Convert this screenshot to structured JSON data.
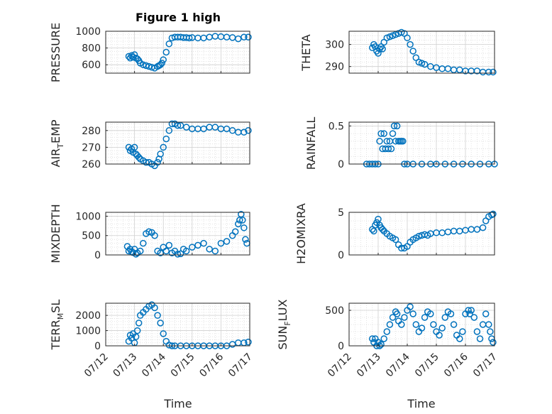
{
  "figure": {
    "title": "Figure 1 high"
  },
  "chart_data": [
    {
      "type": "scatter",
      "name": "PRESSURE",
      "ylabel": "PRESSURE",
      "xlim": [
        0,
        5
      ],
      "ylim": [
        500,
        1000
      ],
      "yticks": [
        600,
        800,
        1000
      ],
      "grid": true,
      "x": [
        0.8,
        0.85,
        0.9,
        0.95,
        1.0,
        1.05,
        1.1,
        1.15,
        1.2,
        1.3,
        1.4,
        1.5,
        1.6,
        1.7,
        1.8,
        1.85,
        1.9,
        1.95,
        2.0,
        2.1,
        2.2,
        2.3,
        2.4,
        2.5,
        2.6,
        2.7,
        2.8,
        2.9,
        3.0,
        3.2,
        3.4,
        3.6,
        3.8,
        4.0,
        4.2,
        4.4,
        4.6,
        4.8,
        4.95
      ],
      "values": [
        700,
        680,
        710,
        690,
        720,
        680,
        670,
        650,
        620,
        600,
        590,
        580,
        570,
        560,
        580,
        590,
        600,
        620,
        660,
        750,
        850,
        920,
        930,
        930,
        930,
        925,
        925,
        920,
        925,
        920,
        920,
        930,
        940,
        935,
        930,
        925,
        910,
        930,
        930
      ]
    },
    {
      "type": "scatter",
      "name": "THETA",
      "ylabel": "THETA",
      "xlim": [
        0,
        5
      ],
      "ylim": [
        287,
        306
      ],
      "yticks": [
        290,
        300
      ],
      "grid": true,
      "x": [
        0.8,
        0.85,
        0.9,
        0.95,
        1.0,
        1.05,
        1.1,
        1.15,
        1.2,
        1.3,
        1.4,
        1.5,
        1.6,
        1.7,
        1.8,
        1.9,
        2.0,
        2.1,
        2.2,
        2.3,
        2.4,
        2.5,
        2.6,
        2.8,
        3.0,
        3.2,
        3.4,
        3.6,
        3.8,
        4.0,
        4.2,
        4.4,
        4.6,
        4.8,
        4.95
      ],
      "values": [
        298.5,
        300,
        299,
        297,
        296,
        298,
        299,
        298,
        301,
        303,
        303.5,
        304,
        304.5,
        305,
        305.5,
        305,
        303,
        300,
        297,
        294,
        292,
        291.5,
        291,
        290,
        289.5,
        289,
        289,
        288.5,
        288.5,
        288,
        288,
        288,
        287.5,
        287.5,
        287.5
      ]
    },
    {
      "type": "scatter",
      "name": "AIR_TEMP",
      "ylabel": "AIR_TEMP",
      "xlim": [
        0,
        5
      ],
      "ylim": [
        260,
        285
      ],
      "yticks": [
        260,
        270,
        280
      ],
      "grid": true,
      "x": [
        0.8,
        0.85,
        0.9,
        0.95,
        1.0,
        1.05,
        1.1,
        1.15,
        1.2,
        1.3,
        1.4,
        1.5,
        1.6,
        1.7,
        1.8,
        1.85,
        1.9,
        2.0,
        2.1,
        2.2,
        2.3,
        2.4,
        2.5,
        2.6,
        2.8,
        3.0,
        3.2,
        3.4,
        3.6,
        3.8,
        4.0,
        4.2,
        4.4,
        4.6,
        4.8,
        4.95
      ],
      "values": [
        270,
        268,
        269,
        267,
        270,
        266,
        265,
        264,
        263,
        262,
        261,
        261,
        260,
        259,
        261,
        263,
        266,
        270,
        275,
        280,
        284,
        284,
        283,
        283,
        282,
        281,
        281,
        281,
        282,
        282,
        281,
        281,
        280,
        279,
        279,
        280
      ]
    },
    {
      "type": "scatter",
      "name": "RAINFALL",
      "ylabel": "RAINFALL",
      "xlim": [
        0,
        5
      ],
      "ylim": [
        0,
        0.55
      ],
      "yticks": [
        0,
        0.5
      ],
      "grid": true,
      "x": [
        0.6,
        0.7,
        0.8,
        0.9,
        1.0,
        1.05,
        1.1,
        1.15,
        1.2,
        1.25,
        1.3,
        1.35,
        1.4,
        1.45,
        1.5,
        1.55,
        1.6,
        1.65,
        1.7,
        1.75,
        1.8,
        1.85,
        1.9,
        2.0,
        2.2,
        2.5,
        2.8,
        3.0,
        3.3,
        3.6,
        3.9,
        4.2,
        4.5,
        4.8,
        5.0
      ],
      "values": [
        0,
        0,
        0,
        0,
        0,
        0.3,
        0.4,
        0.2,
        0.4,
        0.2,
        0.3,
        0.2,
        0.3,
        0.2,
        0.4,
        0.5,
        0.3,
        0.5,
        0.3,
        0.3,
        0.3,
        0.3,
        0,
        0,
        0,
        0,
        0,
        0,
        0,
        0,
        0,
        0,
        0,
        0,
        0
      ]
    },
    {
      "type": "scatter",
      "name": "MIXDEPTH",
      "ylabel": "MIXDEPTH",
      "xlim": [
        0,
        5
      ],
      "ylim": [
        0,
        1100
      ],
      "yticks": [
        0,
        500,
        1000
      ],
      "grid": true,
      "x": [
        0.75,
        0.8,
        0.85,
        0.9,
        0.95,
        1.0,
        1.05,
        1.1,
        1.2,
        1.3,
        1.4,
        1.5,
        1.6,
        1.7,
        1.8,
        1.9,
        2.0,
        2.1,
        2.2,
        2.3,
        2.4,
        2.5,
        2.6,
        2.7,
        2.8,
        3.0,
        3.2,
        3.4,
        3.6,
        3.8,
        4.0,
        4.2,
        4.4,
        4.5,
        4.6,
        4.65,
        4.7,
        4.75,
        4.8,
        4.85,
        4.9
      ],
      "values": [
        220,
        100,
        150,
        80,
        60,
        150,
        20,
        50,
        100,
        300,
        550,
        600,
        580,
        500,
        100,
        50,
        200,
        100,
        250,
        50,
        100,
        20,
        30,
        150,
        100,
        200,
        250,
        300,
        150,
        100,
        300,
        350,
        500,
        600,
        800,
        900,
        1050,
        900,
        700,
        400,
        300
      ]
    },
    {
      "type": "scatter",
      "name": "H2OMIXRA",
      "ylabel": "H2OMIXRA",
      "xlim": [
        0,
        5
      ],
      "ylim": [
        0,
        5
      ],
      "yticks": [
        0,
        5
      ],
      "grid": true,
      "x": [
        0.8,
        0.85,
        0.9,
        0.95,
        1.0,
        1.05,
        1.1,
        1.15,
        1.2,
        1.3,
        1.4,
        1.5,
        1.6,
        1.7,
        1.8,
        1.9,
        2.0,
        2.1,
        2.2,
        2.3,
        2.4,
        2.5,
        2.6,
        2.7,
        2.8,
        3.0,
        3.2,
        3.4,
        3.6,
        3.8,
        4.0,
        4.2,
        4.4,
        4.6,
        4.7,
        4.8,
        4.9,
        4.95
      ],
      "values": [
        3.0,
        2.8,
        3.5,
        3.8,
        4.2,
        3.5,
        3.2,
        3.0,
        2.8,
        2.5,
        2.2,
        2.0,
        1.8,
        1.2,
        0.8,
        0.8,
        1.0,
        1.5,
        1.8,
        2.0,
        2.2,
        2.3,
        2.4,
        2.3,
        2.5,
        2.6,
        2.6,
        2.7,
        2.8,
        2.8,
        2.9,
        3.0,
        3.0,
        3.2,
        4.0,
        4.5,
        4.7,
        4.8
      ]
    },
    {
      "type": "scatter",
      "name": "TERR_MSL",
      "ylabel": "TERR_MSL",
      "xlim": [
        0,
        5
      ],
      "ylim": [
        0,
        2800
      ],
      "yticks": [
        0,
        1000,
        2000
      ],
      "grid": true,
      "x": [
        0.8,
        0.85,
        0.9,
        0.95,
        1.0,
        1.05,
        1.1,
        1.15,
        1.2,
        1.3,
        1.4,
        1.5,
        1.6,
        1.7,
        1.8,
        1.9,
        2.0,
        2.1,
        2.2,
        2.3,
        2.4,
        2.6,
        2.8,
        3.0,
        3.2,
        3.4,
        3.6,
        3.8,
        4.0,
        4.2,
        4.4,
        4.6,
        4.8,
        4.95
      ],
      "values": [
        300,
        700,
        500,
        800,
        200,
        600,
        1000,
        1500,
        2000,
        2200,
        2400,
        2600,
        2700,
        2500,
        2000,
        1500,
        800,
        300,
        50,
        0,
        0,
        0,
        0,
        0,
        0,
        0,
        0,
        0,
        0,
        0,
        100,
        200,
        200,
        250
      ]
    },
    {
      "type": "scatter",
      "name": "SUN_FLUX",
      "ylabel": "SUN_FLUX",
      "xlim": [
        0,
        5
      ],
      "ylim": [
        0,
        600
      ],
      "yticks": [
        0,
        500
      ],
      "grid": true,
      "x": [
        0.8,
        0.85,
        0.9,
        0.95,
        1.0,
        1.05,
        1.1,
        1.2,
        1.3,
        1.4,
        1.5,
        1.6,
        1.65,
        1.7,
        1.8,
        1.9,
        2.0,
        2.1,
        2.2,
        2.3,
        2.4,
        2.5,
        2.6,
        2.7,
        2.8,
        2.9,
        3.0,
        3.1,
        3.2,
        3.3,
        3.4,
        3.5,
        3.6,
        3.7,
        3.8,
        3.9,
        4.0,
        4.1,
        4.15,
        4.2,
        4.3,
        4.4,
        4.5,
        4.6,
        4.7,
        4.8,
        4.85,
        4.9,
        4.95
      ],
      "values": [
        100,
        50,
        100,
        0,
        50,
        0,
        20,
        100,
        200,
        300,
        400,
        480,
        450,
        350,
        300,
        400,
        500,
        550,
        450,
        300,
        200,
        250,
        400,
        480,
        450,
        300,
        200,
        150,
        250,
        400,
        480,
        450,
        300,
        150,
        100,
        200,
        450,
        500,
        450,
        500,
        400,
        200,
        100,
        300,
        450,
        300,
        200,
        100,
        50
      ]
    }
  ],
  "xaxis": {
    "label": "Time",
    "ticks": [
      0,
      1,
      2,
      3,
      4,
      5
    ],
    "ticklabels": [
      "07/12",
      "07/13",
      "07/14",
      "07/15",
      "07/16",
      "07/17"
    ]
  },
  "colors": {
    "marker": "#0072BD",
    "grid": "#dcdcdc",
    "axis": "#262626"
  }
}
